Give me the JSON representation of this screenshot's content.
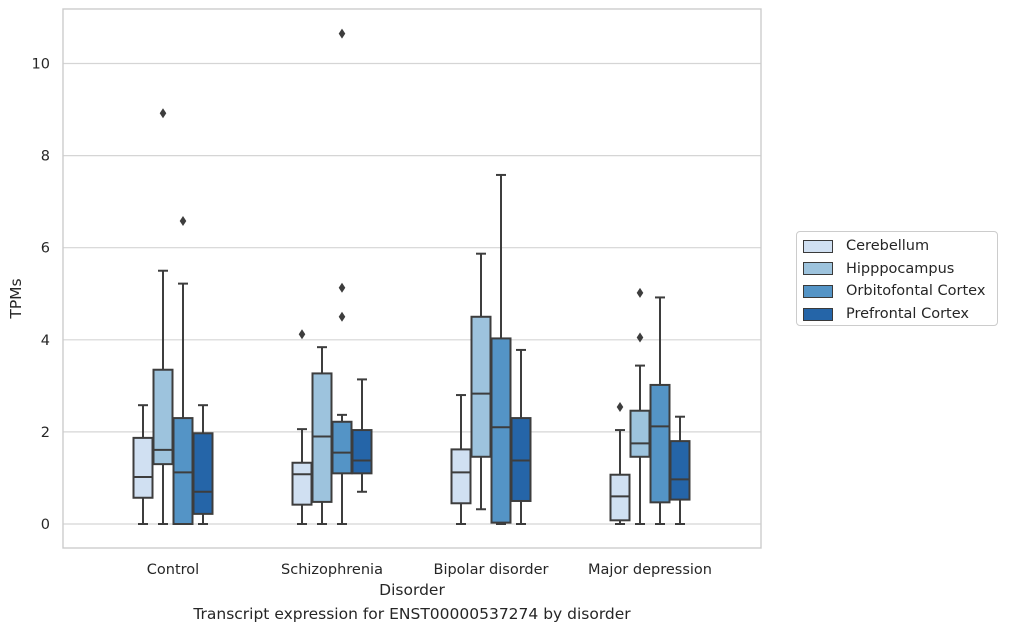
{
  "chart_data": {
    "type": "boxplot",
    "xlabel": "Disorder",
    "ylabel": "TPMs",
    "ylim": [
      -0.5,
      11.2
    ],
    "yticks": [
      0,
      2,
      4,
      6,
      8,
      10
    ],
    "grid": "horizontal",
    "legend_position": "right",
    "categories": [
      "Control",
      "Schizophrenia",
      "Bipolar disorder",
      "Major depression"
    ],
    "series": [
      {
        "name": "Cerebellum",
        "color": "#d0e0f2",
        "boxes": [
          {
            "whislo": 0.0,
            "q1": 0.57,
            "med": 1.02,
            "q3": 1.87,
            "whishi": 2.58,
            "fliers": []
          },
          {
            "whislo": 0.0,
            "q1": 0.42,
            "med": 1.08,
            "q3": 1.33,
            "whishi": 2.06,
            "fliers": [
              4.12
            ]
          },
          {
            "whislo": 0.0,
            "q1": 0.45,
            "med": 1.12,
            "q3": 1.62,
            "whishi": 2.8,
            "fliers": []
          },
          {
            "whislo": 0.0,
            "q1": 0.08,
            "med": 0.6,
            "q3": 1.07,
            "whishi": 2.04,
            "fliers": [
              2.54
            ]
          }
        ]
      },
      {
        "name": "Hipppocampus",
        "color": "#9dc3dd",
        "boxes": [
          {
            "whislo": 0.0,
            "q1": 1.3,
            "med": 1.61,
            "q3": 3.35,
            "whishi": 5.5,
            "fliers": [
              8.92
            ]
          },
          {
            "whislo": 0.0,
            "q1": 0.48,
            "med": 1.9,
            "q3": 3.27,
            "whishi": 3.84,
            "fliers": []
          },
          {
            "whislo": 0.32,
            "q1": 1.46,
            "med": 2.83,
            "q3": 4.5,
            "whishi": 5.87,
            "fliers": []
          },
          {
            "whislo": 0.0,
            "q1": 1.46,
            "med": 1.75,
            "q3": 2.46,
            "whishi": 3.44,
            "fliers": [
              4.05,
              5.02
            ]
          }
        ]
      },
      {
        "name": "Orbitofontal Cortex",
        "color": "#5494c6",
        "boxes": [
          {
            "whislo": 0.0,
            "q1": 0.0,
            "med": 1.12,
            "q3": 2.3,
            "whishi": 5.22,
            "fliers": [
              6.58
            ]
          },
          {
            "whislo": 0.0,
            "q1": 1.1,
            "med": 1.55,
            "q3": 2.22,
            "whishi": 2.37,
            "fliers": [
              4.5,
              5.13,
              10.65
            ]
          },
          {
            "whislo": 0.0,
            "q1": 0.03,
            "med": 2.1,
            "q3": 4.03,
            "whishi": 7.58,
            "fliers": []
          },
          {
            "whislo": 0.0,
            "q1": 0.47,
            "med": 2.12,
            "q3": 3.02,
            "whishi": 4.92,
            "fliers": []
          }
        ]
      },
      {
        "name": "Prefrontal Cortex",
        "color": "#2565a8",
        "boxes": [
          {
            "whislo": 0.0,
            "q1": 0.22,
            "med": 0.7,
            "q3": 1.97,
            "whishi": 2.58,
            "fliers": []
          },
          {
            "whislo": 0.7,
            "q1": 1.1,
            "med": 1.38,
            "q3": 2.04,
            "whishi": 3.14,
            "fliers": []
          },
          {
            "whislo": 0.0,
            "q1": 0.5,
            "med": 1.38,
            "q3": 2.3,
            "whishi": 3.78,
            "fliers": []
          },
          {
            "whislo": 0.0,
            "q1": 0.53,
            "med": 0.97,
            "q3": 1.8,
            "whishi": 2.33,
            "fliers": []
          }
        ]
      }
    ],
    "caption": "Transcript expression for ENST00000537274 by disorder"
  }
}
